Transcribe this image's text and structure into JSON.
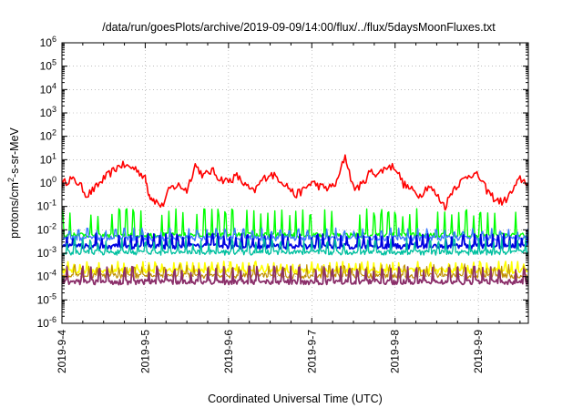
{
  "chart_data": {
    "type": "line",
    "title": "/data/run/goesPlots/archive/2019-09-09/14:00/flux/../flux/5daysMoonFluxes.txt",
    "xlabel": "Coordinated Universal Time (UTC)",
    "ylabel": {
      "base": "protons/cm",
      "sup": "2",
      "rest": "-s-sr-MeV"
    },
    "yscale": "log",
    "ylim_exp": [
      -6,
      6
    ],
    "y_tick_labels": [
      {
        "base": "10",
        "exp": "-6"
      },
      {
        "base": "10",
        "exp": "-5"
      },
      {
        "base": "10",
        "exp": "-4"
      },
      {
        "base": "10",
        "exp": "-3"
      },
      {
        "base": "10",
        "exp": "-2"
      },
      {
        "base": "10",
        "exp": "-1"
      },
      {
        "base": "10",
        "exp": "0"
      },
      {
        "base": "10",
        "exp": "1"
      },
      {
        "base": "10",
        "exp": "2"
      },
      {
        "base": "10",
        "exp": "3"
      },
      {
        "base": "10",
        "exp": "4"
      },
      {
        "base": "10",
        "exp": "5"
      },
      {
        "base": "10",
        "exp": "6"
      }
    ],
    "x_range_days": [
      0,
      5.6
    ],
    "x_tick_labels": [
      "2019-9-4",
      "2019-9-5",
      "2019-9-6",
      "2019-9-7",
      "2019-9-8",
      "2019-9-9"
    ],
    "grid": true,
    "series": [
      {
        "color": "#ff0000",
        "width": 1.6,
        "x": [
          0,
          0.1,
          0.2,
          0.3,
          0.4,
          0.5,
          0.6,
          0.7,
          0.8,
          0.9,
          1.0,
          1.05,
          1.1,
          1.2,
          1.3,
          1.4,
          1.5,
          1.6,
          1.7,
          1.8,
          1.9,
          2.0,
          2.1,
          2.2,
          2.3,
          2.4,
          2.5,
          2.6,
          2.7,
          2.8,
          2.9,
          3.0,
          3.1,
          3.2,
          3.3,
          3.4,
          3.5,
          3.6,
          3.7,
          3.8,
          3.9,
          4.0,
          4.1,
          4.2,
          4.3,
          4.4,
          4.5,
          4.6,
          4.7,
          4.8,
          4.9,
          5.0,
          5.1,
          5.2,
          5.3,
          5.4,
          5.5,
          5.6
        ],
        "y": [
          0.9,
          1.5,
          1.0,
          0.3,
          0.6,
          1.5,
          3,
          6,
          5,
          4,
          1.5,
          0.3,
          0.2,
          0.1,
          0.6,
          0.8,
          0.5,
          6,
          2,
          3.5,
          1.5,
          1.2,
          2,
          0.8,
          0.4,
          1.3,
          2.5,
          1.6,
          0.8,
          0.3,
          0.5,
          1.1,
          0.7,
          0.6,
          1.0,
          15,
          0.6,
          0.8,
          3,
          2.5,
          5,
          5,
          0.9,
          0.5,
          0.3,
          0.8,
          0.3,
          0.1,
          0.6,
          1.2,
          2.5,
          2,
          0.5,
          0.2,
          0.15,
          0.4,
          1.5,
          1.0
        ]
      },
      {
        "color": "#00ff00",
        "width": 1.4,
        "base": 0.006,
        "peak": 0.08,
        "period": 0.085,
        "phase": 0.0
      },
      {
        "color": "#3a78ff",
        "width": 1.4,
        "base": 0.0045,
        "peak": 0.012,
        "period": 0.11,
        "phase": 0.03
      },
      {
        "color": "#0000e0",
        "width": 1.8,
        "base": 0.002,
        "peak": 0.007,
        "period": 0.07,
        "phase": 0.02
      },
      {
        "color": "#00c0a0",
        "width": 1.4,
        "base": 0.0011,
        "peak": 0.0045,
        "period": 0.095,
        "phase": 0.05
      },
      {
        "color": "#ffff00",
        "width": 1.6,
        "base": 0.00018,
        "peak": 0.00045,
        "period": 0.075,
        "phase": 0.01
      },
      {
        "color": "#c09000",
        "width": 1.2,
        "base": 0.00011,
        "peak": 0.00035,
        "period": 0.09,
        "phase": 0.04
      },
      {
        "color": "#8b2f6a",
        "width": 1.8,
        "base": 6e-05,
        "peak": 0.00028,
        "period": 0.1,
        "phase": 0.06
      }
    ]
  }
}
